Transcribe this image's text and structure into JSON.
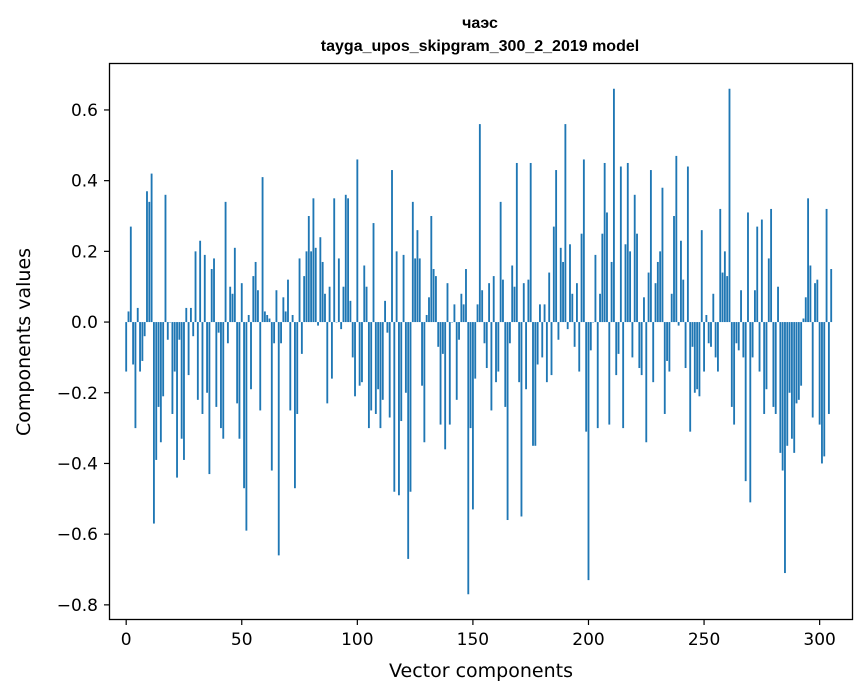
{
  "chart_data": {
    "type": "bar",
    "title_line1": "чаэс",
    "title_line2": "tayga_upos_skipgram_300_2_2019 model",
    "xlabel": "Vector components",
    "ylabel": "Components values",
    "xlim": [
      -7,
      314
    ],
    "ylim": [
      -0.84,
      0.73
    ],
    "xticks": [
      0,
      50,
      100,
      150,
      200,
      250,
      300
    ],
    "xtick_labels": [
      "0",
      "50",
      "100",
      "150",
      "200",
      "250",
      "300"
    ],
    "yticks": [
      0.6,
      0.4,
      0.2,
      0.0,
      -0.2,
      -0.4,
      -0.6,
      -0.8
    ],
    "ytick_labels": [
      "0.6",
      "0.4",
      "0.2",
      "0.0",
      "−0.2",
      "−0.4",
      "−0.6",
      "−0.8"
    ],
    "bar_color": "#1f77b4",
    "values": [
      -0.14,
      0.03,
      0.27,
      -0.12,
      -0.3,
      0.04,
      -0.14,
      -0.11,
      -0.04,
      0.37,
      0.34,
      0.42,
      -0.57,
      -0.39,
      -0.24,
      -0.34,
      -0.21,
      0.36,
      -0.05,
      0.0,
      -0.26,
      -0.14,
      -0.44,
      -0.05,
      -0.33,
      -0.39,
      0.04,
      -0.15,
      0.04,
      -0.04,
      0.2,
      -0.22,
      0.23,
      -0.26,
      0.19,
      -0.2,
      -0.43,
      0.15,
      0.18,
      -0.24,
      -0.03,
      -0.3,
      -0.33,
      0.34,
      -0.06,
      0.1,
      0.08,
      0.21,
      -0.23,
      -0.33,
      0.11,
      -0.47,
      -0.59,
      0.02,
      -0.19,
      0.13,
      0.17,
      0.09,
      -0.25,
      0.41,
      0.03,
      0.02,
      0.01,
      -0.42,
      -0.06,
      0.09,
      -0.66,
      -0.06,
      0.07,
      0.03,
      0.12,
      -0.25,
      0.02,
      -0.47,
      -0.26,
      0.18,
      -0.09,
      0.13,
      0.2,
      0.3,
      0.2,
      0.35,
      0.21,
      -0.01,
      0.24,
      0.17,
      0.08,
      -0.23,
      0.1,
      -0.16,
      0.35,
      0.0,
      0.18,
      -0.02,
      0.1,
      0.36,
      0.35,
      0.06,
      -0.1,
      -0.21,
      0.46,
      -0.18,
      -0.17,
      0.16,
      0.1,
      -0.3,
      -0.25,
      0.28,
      -0.26,
      -0.19,
      -0.3,
      -0.22,
      0.06,
      -0.03,
      -0.27,
      0.43,
      -0.48,
      0.2,
      -0.49,
      -0.28,
      0.19,
      -0.2,
      -0.67,
      -0.48,
      0.34,
      0.18,
      0.26,
      0.18,
      -0.18,
      -0.34,
      0.02,
      0.07,
      0.3,
      0.15,
      0.13,
      -0.07,
      -0.29,
      -0.09,
      -0.36,
      0.11,
      -0.29,
      0.0,
      0.05,
      -0.22,
      -0.05,
      0.08,
      0.05,
      0.15,
      -0.77,
      -0.3,
      -0.53,
      -0.16,
      0.05,
      0.56,
      0.09,
      -0.06,
      -0.13,
      0.11,
      -0.25,
      0.13,
      -0.17,
      -0.14,
      0.34,
      0.12,
      -0.24,
      -0.56,
      -0.06,
      0.16,
      0.1,
      0.45,
      -0.17,
      -0.55,
      0.11,
      -0.19,
      0.12,
      0.45,
      -0.35,
      -0.35,
      -0.12,
      0.05,
      -0.1,
      0.05,
      -0.17,
      0.14,
      -0.15,
      0.27,
      0.43,
      -0.05,
      0.21,
      0.17,
      0.56,
      -0.02,
      0.22,
      0.08,
      -0.07,
      0.11,
      -0.14,
      0.25,
      0.46,
      -0.31,
      -0.73,
      -0.08,
      0.0,
      0.19,
      -0.3,
      0.08,
      0.25,
      0.45,
      0.31,
      -0.29,
      0.17,
      0.66,
      -0.15,
      -0.09,
      0.44,
      -0.3,
      0.22,
      0.45,
      0.2,
      -0.1,
      0.36,
      0.25,
      -0.13,
      -0.15,
      0.07,
      -0.34,
      0.14,
      0.43,
      -0.17,
      0.11,
      0.17,
      0.2,
      0.38,
      -0.26,
      -0.11,
      -0.14,
      0.08,
      0.3,
      0.47,
      -0.01,
      0.23,
      0.12,
      -0.13,
      0.44,
      -0.31,
      -0.07,
      -0.2,
      -0.19,
      -0.21,
      0.26,
      -0.14,
      0.02,
      -0.06,
      -0.07,
      0.08,
      -0.1,
      -0.14,
      0.32,
      0.14,
      0.2,
      0.13,
      0.66,
      -0.24,
      -0.29,
      -0.06,
      -0.08,
      0.09,
      -0.1,
      -0.45,
      0.31,
      -0.51,
      -0.1,
      0.09,
      0.27,
      -0.14,
      0.29,
      -0.26,
      -0.19,
      0.18,
      0.32,
      -0.24,
      -0.26,
      0.1,
      -0.37,
      -0.42,
      -0.71,
      -0.35,
      -0.2,
      -0.33,
      -0.37,
      -0.23,
      -0.22,
      -0.18,
      0.01,
      0.07,
      0.35,
      0.16,
      -0.27,
      0.11,
      0.12,
      -0.29,
      -0.4,
      -0.38,
      0.32,
      -0.26,
      0.15
    ]
  }
}
